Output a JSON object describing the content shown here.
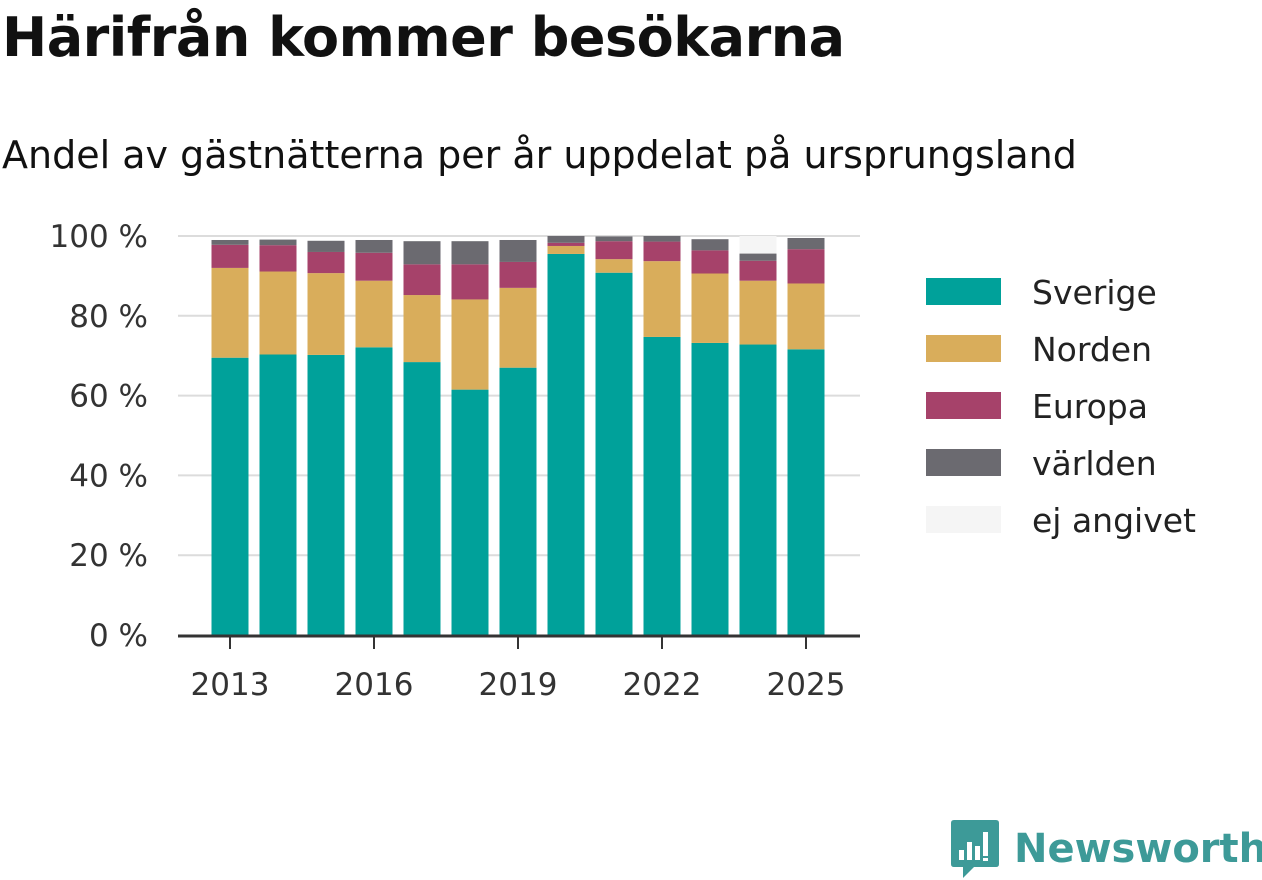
{
  "title": "Härifrån kommer besökarna",
  "subtitle": "Andel av gästnätterna per år uppdelat på ursprungsland",
  "brand": "Newsworthy",
  "chart_data": {
    "type": "bar",
    "stacked": true,
    "categories": [
      "2013",
      "2014",
      "2015",
      "2016",
      "2017",
      "2018",
      "2019",
      "2020",
      "2021",
      "2022",
      "2023",
      "2024",
      "2025"
    ],
    "x_tick_labels": [
      "2013",
      "2016",
      "2019",
      "2022",
      "2025"
    ],
    "y_tick_labels": [
      "0 %",
      "20 %",
      "40 %",
      "60 %",
      "80 %",
      "100 %"
    ],
    "ylim": [
      0,
      100
    ],
    "grid": true,
    "legend_position": "right",
    "series": [
      {
        "name": "Sverige",
        "color": "#00a19a",
        "values": [
          69.5,
          70.3,
          70.2,
          72.1,
          68.4,
          61.5,
          67.0,
          95.5,
          90.8,
          74.7,
          73.2,
          72.8,
          71.6
        ]
      },
      {
        "name": "Norden",
        "color": "#d9ad5b",
        "values": [
          22.5,
          20.8,
          20.5,
          16.7,
          16.8,
          22.6,
          20.0,
          2.0,
          3.4,
          19.0,
          17.4,
          16.0,
          16.5
        ]
      },
      {
        "name": "Europa",
        "color": "#a6426a",
        "values": [
          5.8,
          6.6,
          5.3,
          7.0,
          7.7,
          8.8,
          6.5,
          0.8,
          4.5,
          4.9,
          5.8,
          5.0,
          8.6
        ]
      },
      {
        "name": "världen",
        "color": "#6b6a70",
        "values": [
          1.2,
          1.4,
          2.8,
          3.2,
          5.8,
          5.8,
          5.5,
          1.7,
          1.2,
          1.4,
          2.8,
          1.8,
          2.8
        ]
      },
      {
        "name": "ej angivet",
        "color": "#f5f5f5",
        "values": [
          0,
          0,
          0,
          0,
          0,
          0,
          0,
          0,
          0,
          0,
          0,
          4.4,
          0
        ]
      }
    ]
  }
}
